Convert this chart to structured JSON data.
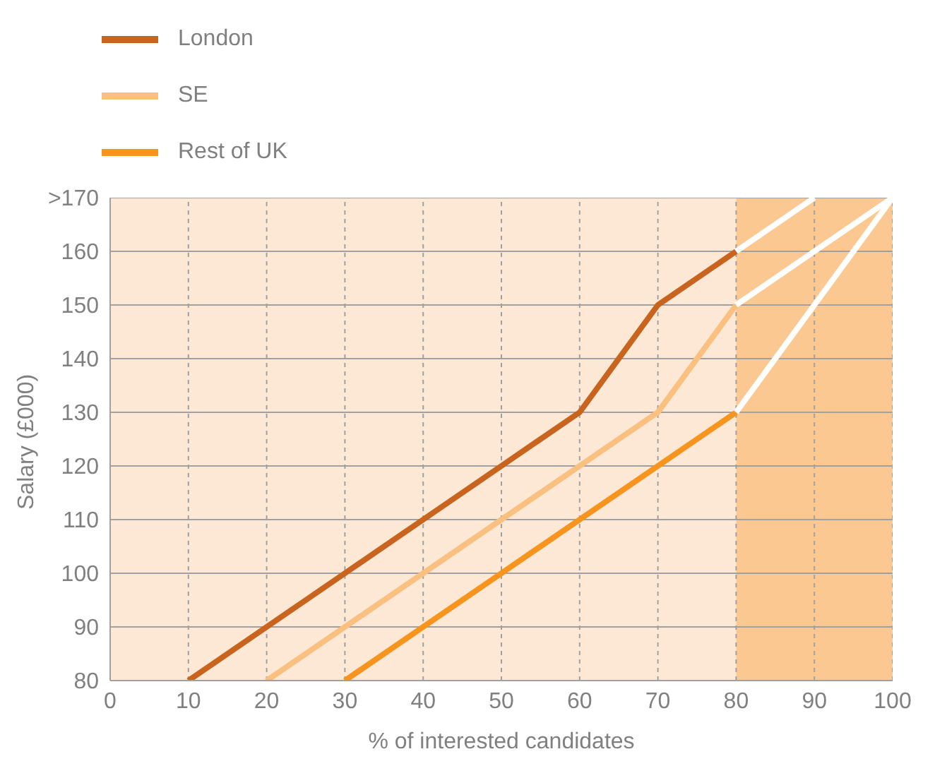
{
  "chart_data": {
    "type": "line",
    "xlabel": "% of interested candidates",
    "ylabel": "Salary (£000)",
    "x": [
      10,
      20,
      30,
      40,
      50,
      60,
      70,
      80
    ],
    "series": [
      {
        "name": "London",
        "color": "#c8641e",
        "values": [
          80,
          90,
          100,
          110,
          120,
          130,
          150,
          160
        ]
      },
      {
        "name": "SE",
        "color": "#f9c07f",
        "values": [
          null,
          80,
          90,
          100,
          110,
          120,
          130,
          150
        ]
      },
      {
        "name": "Rest of UK",
        "color": "#f7941d",
        "values": [
          null,
          null,
          80,
          90,
          100,
          110,
          120,
          130
        ]
      },
      {
        "color": "#ffffff",
        "x": [
          80,
          90
        ],
        "values": [
          160,
          170
        ]
      },
      {
        "color": "#ffffff",
        "x": [
          80,
          100
        ],
        "values": [
          150,
          170
        ]
      },
      {
        "color": "#ffffff",
        "x": [
          80,
          100
        ],
        "values": [
          130,
          170
        ]
      }
    ],
    "xlim": [
      0,
      100
    ],
    "xticks": [
      0,
      10,
      20,
      30,
      40,
      50,
      60,
      70,
      80,
      90,
      100
    ],
    "ylim": [
      80,
      170
    ],
    "yticks": [
      80,
      90,
      100,
      110,
      120,
      130,
      140,
      150,
      160,
      {
        "value": 170,
        "label": ">170"
      }
    ],
    "bands": [
      {
        "axis": "x",
        "from": 0,
        "to": 80,
        "color": "#fde8d6"
      },
      {
        "axis": "x",
        "from": 80,
        "to": 100,
        "color": "#fcc891"
      }
    ],
    "grid": true,
    "legend": "top left",
    "marker": "none",
    "line_style": "solid"
  }
}
